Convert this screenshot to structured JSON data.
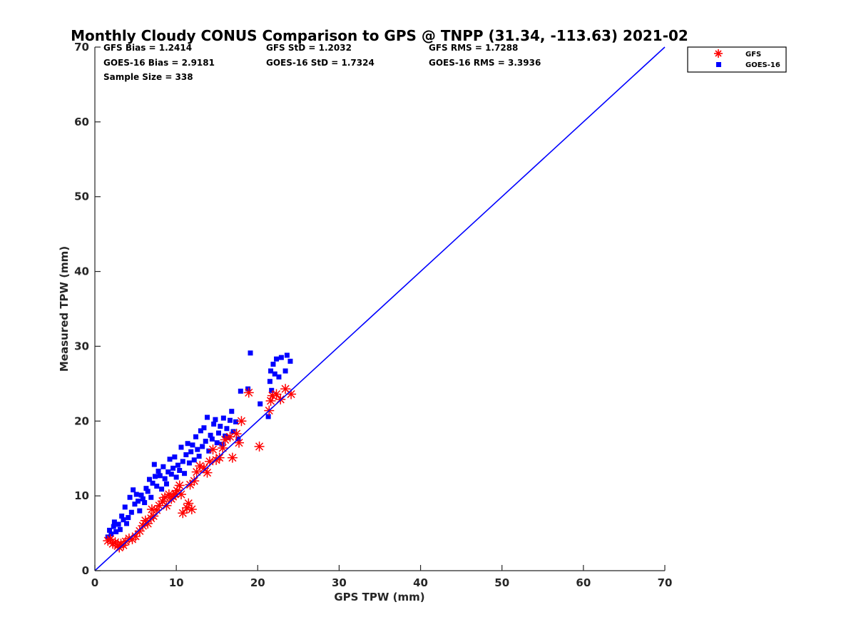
{
  "chart_data": {
    "type": "scatter",
    "title": "Monthly Cloudy CONUS Comparison to GPS @ TNPP (31.34, -113.63) 2021-02",
    "xlabel": "GPS TPW (mm)",
    "ylabel": "Measured TPW (mm)",
    "xlim": [
      0,
      70
    ],
    "ylim": [
      0,
      70
    ],
    "xticks": [
      0,
      10,
      20,
      30,
      40,
      50,
      60,
      70
    ],
    "yticks": [
      0,
      10,
      20,
      30,
      40,
      50,
      60,
      70
    ],
    "grid": false,
    "legend_position": "top-right outside",
    "stats": [
      [
        "GFS Bias = 1.2414",
        "GFS StD = 1.2032",
        "GFS RMS = 1.7288"
      ],
      [
        "GOES-16 Bias = 2.9181",
        "GOES-16 StD = 1.7324",
        "GOES-16 RMS = 3.3936"
      ],
      [
        "Sample Size = 338"
      ]
    ],
    "reference_line": {
      "x": [
        0,
        70
      ],
      "y": [
        0,
        70
      ],
      "color": "#0000ff"
    },
    "series": [
      {
        "name": "GFS",
        "marker": "asterisk",
        "color": "#ff0000",
        "points": [
          [
            1.6,
            4.0
          ],
          [
            1.9,
            4.2
          ],
          [
            2.2,
            3.6
          ],
          [
            2.5,
            3.8
          ],
          [
            2.8,
            3.3
          ],
          [
            3.0,
            3.1
          ],
          [
            3.2,
            3.6
          ],
          [
            3.5,
            3.4
          ],
          [
            3.8,
            3.9
          ],
          [
            4.2,
            4.3
          ],
          [
            4.6,
            4.2
          ],
          [
            5.0,
            4.6
          ],
          [
            5.5,
            5.3
          ],
          [
            5.9,
            6.0
          ],
          [
            6.2,
            6.7
          ],
          [
            6.5,
            6.3
          ],
          [
            6.9,
            7.0
          ],
          [
            7.2,
            7.3
          ],
          [
            7.0,
            8.2
          ],
          [
            7.6,
            8.1
          ],
          [
            7.9,
            8.7
          ],
          [
            8.3,
            9.3
          ],
          [
            8.6,
            9.8
          ],
          [
            8.8,
            8.7
          ],
          [
            9.1,
            10.2
          ],
          [
            9.4,
            9.6
          ],
          [
            9.6,
            9.9
          ],
          [
            9.9,
            10.3
          ],
          [
            10.1,
            10.7
          ],
          [
            10.4,
            11.4
          ],
          [
            10.6,
            10.2
          ],
          [
            10.8,
            7.7
          ],
          [
            11.3,
            8.4
          ],
          [
            11.9,
            8.2
          ],
          [
            11.5,
            9.0
          ],
          [
            11.7,
            11.5
          ],
          [
            12.2,
            12.0
          ],
          [
            12.5,
            13.2
          ],
          [
            12.9,
            14.0
          ],
          [
            13.4,
            13.7
          ],
          [
            13.8,
            13.1
          ],
          [
            14.1,
            14.6
          ],
          [
            14.5,
            16.2
          ],
          [
            14.9,
            14.8
          ],
          [
            15.3,
            15.1
          ],
          [
            15.7,
            16.4
          ],
          [
            16.0,
            17.5
          ],
          [
            16.6,
            17.9
          ],
          [
            16.9,
            15.1
          ],
          [
            17.4,
            18.3
          ],
          [
            17.7,
            17.1
          ],
          [
            18.0,
            20.0
          ],
          [
            18.9,
            23.8
          ],
          [
            20.2,
            16.6
          ],
          [
            21.4,
            21.4
          ],
          [
            21.6,
            22.7
          ],
          [
            21.8,
            23.4
          ],
          [
            22.3,
            23.6
          ],
          [
            22.8,
            22.9
          ],
          [
            23.4,
            24.3
          ],
          [
            24.1,
            23.6
          ]
        ]
      },
      {
        "name": "GOES-16",
        "marker": "square",
        "color": "#0000ff",
        "points": [
          [
            1.6,
            4.5
          ],
          [
            1.8,
            5.4
          ],
          [
            2.0,
            4.9
          ],
          [
            2.3,
            5.9
          ],
          [
            2.4,
            6.5
          ],
          [
            2.6,
            5.2
          ],
          [
            2.9,
            6.2
          ],
          [
            3.1,
            5.5
          ],
          [
            3.3,
            7.3
          ],
          [
            3.5,
            6.8
          ],
          [
            3.7,
            8.5
          ],
          [
            3.9,
            6.3
          ],
          [
            4.1,
            7.1
          ],
          [
            4.3,
            9.8
          ],
          [
            4.5,
            7.8
          ],
          [
            4.7,
            10.8
          ],
          [
            4.9,
            8.9
          ],
          [
            5.1,
            10.2
          ],
          [
            5.3,
            9.3
          ],
          [
            5.5,
            8.0
          ],
          [
            5.7,
            10.1
          ],
          [
            5.9,
            9.6
          ],
          [
            6.1,
            9.1
          ],
          [
            6.3,
            11.0
          ],
          [
            6.5,
            10.6
          ],
          [
            6.7,
            12.2
          ],
          [
            6.9,
            9.8
          ],
          [
            7.1,
            11.7
          ],
          [
            7.3,
            14.2
          ],
          [
            7.4,
            12.6
          ],
          [
            7.6,
            11.3
          ],
          [
            7.8,
            13.3
          ],
          [
            8.0,
            12.7
          ],
          [
            8.2,
            10.9
          ],
          [
            8.4,
            13.9
          ],
          [
            8.6,
            12.3
          ],
          [
            8.8,
            11.6
          ],
          [
            9.0,
            13.2
          ],
          [
            9.2,
            14.9
          ],
          [
            9.4,
            12.9
          ],
          [
            9.6,
            13.7
          ],
          [
            9.8,
            15.2
          ],
          [
            10.0,
            12.5
          ],
          [
            10.2,
            14.1
          ],
          [
            10.4,
            13.4
          ],
          [
            10.6,
            16.5
          ],
          [
            10.8,
            14.6
          ],
          [
            11.0,
            13.0
          ],
          [
            11.2,
            15.5
          ],
          [
            11.4,
            17.0
          ],
          [
            11.6,
            14.4
          ],
          [
            11.8,
            15.9
          ],
          [
            12.0,
            16.8
          ],
          [
            12.2,
            14.8
          ],
          [
            12.4,
            17.9
          ],
          [
            12.6,
            16.2
          ],
          [
            12.8,
            15.3
          ],
          [
            13.0,
            18.7
          ],
          [
            13.2,
            16.6
          ],
          [
            13.4,
            19.1
          ],
          [
            13.6,
            17.3
          ],
          [
            13.8,
            20.5
          ],
          [
            14.0,
            16.0
          ],
          [
            14.2,
            18.1
          ],
          [
            14.4,
            17.6
          ],
          [
            14.6,
            19.6
          ],
          [
            14.8,
            20.2
          ],
          [
            15.0,
            17.1
          ],
          [
            15.2,
            18.4
          ],
          [
            15.4,
            19.3
          ],
          [
            15.6,
            16.9
          ],
          [
            15.8,
            20.4
          ],
          [
            16.0,
            18.0
          ],
          [
            16.2,
            19.0
          ],
          [
            16.4,
            17.8
          ],
          [
            16.6,
            20.1
          ],
          [
            16.8,
            21.3
          ],
          [
            17.0,
            18.6
          ],
          [
            17.3,
            19.9
          ],
          [
            17.6,
            17.6
          ],
          [
            17.9,
            24.0
          ],
          [
            18.8,
            24.3
          ],
          [
            19.1,
            29.1
          ],
          [
            20.3,
            22.3
          ],
          [
            21.3,
            20.6
          ],
          [
            21.5,
            25.3
          ],
          [
            21.6,
            26.7
          ],
          [
            21.7,
            24.1
          ],
          [
            21.9,
            27.6
          ],
          [
            22.1,
            26.3
          ],
          [
            22.3,
            28.3
          ],
          [
            22.6,
            25.9
          ],
          [
            22.9,
            28.5
          ],
          [
            23.4,
            26.7
          ],
          [
            23.6,
            28.8
          ],
          [
            24.0,
            28.0
          ]
        ]
      }
    ]
  }
}
